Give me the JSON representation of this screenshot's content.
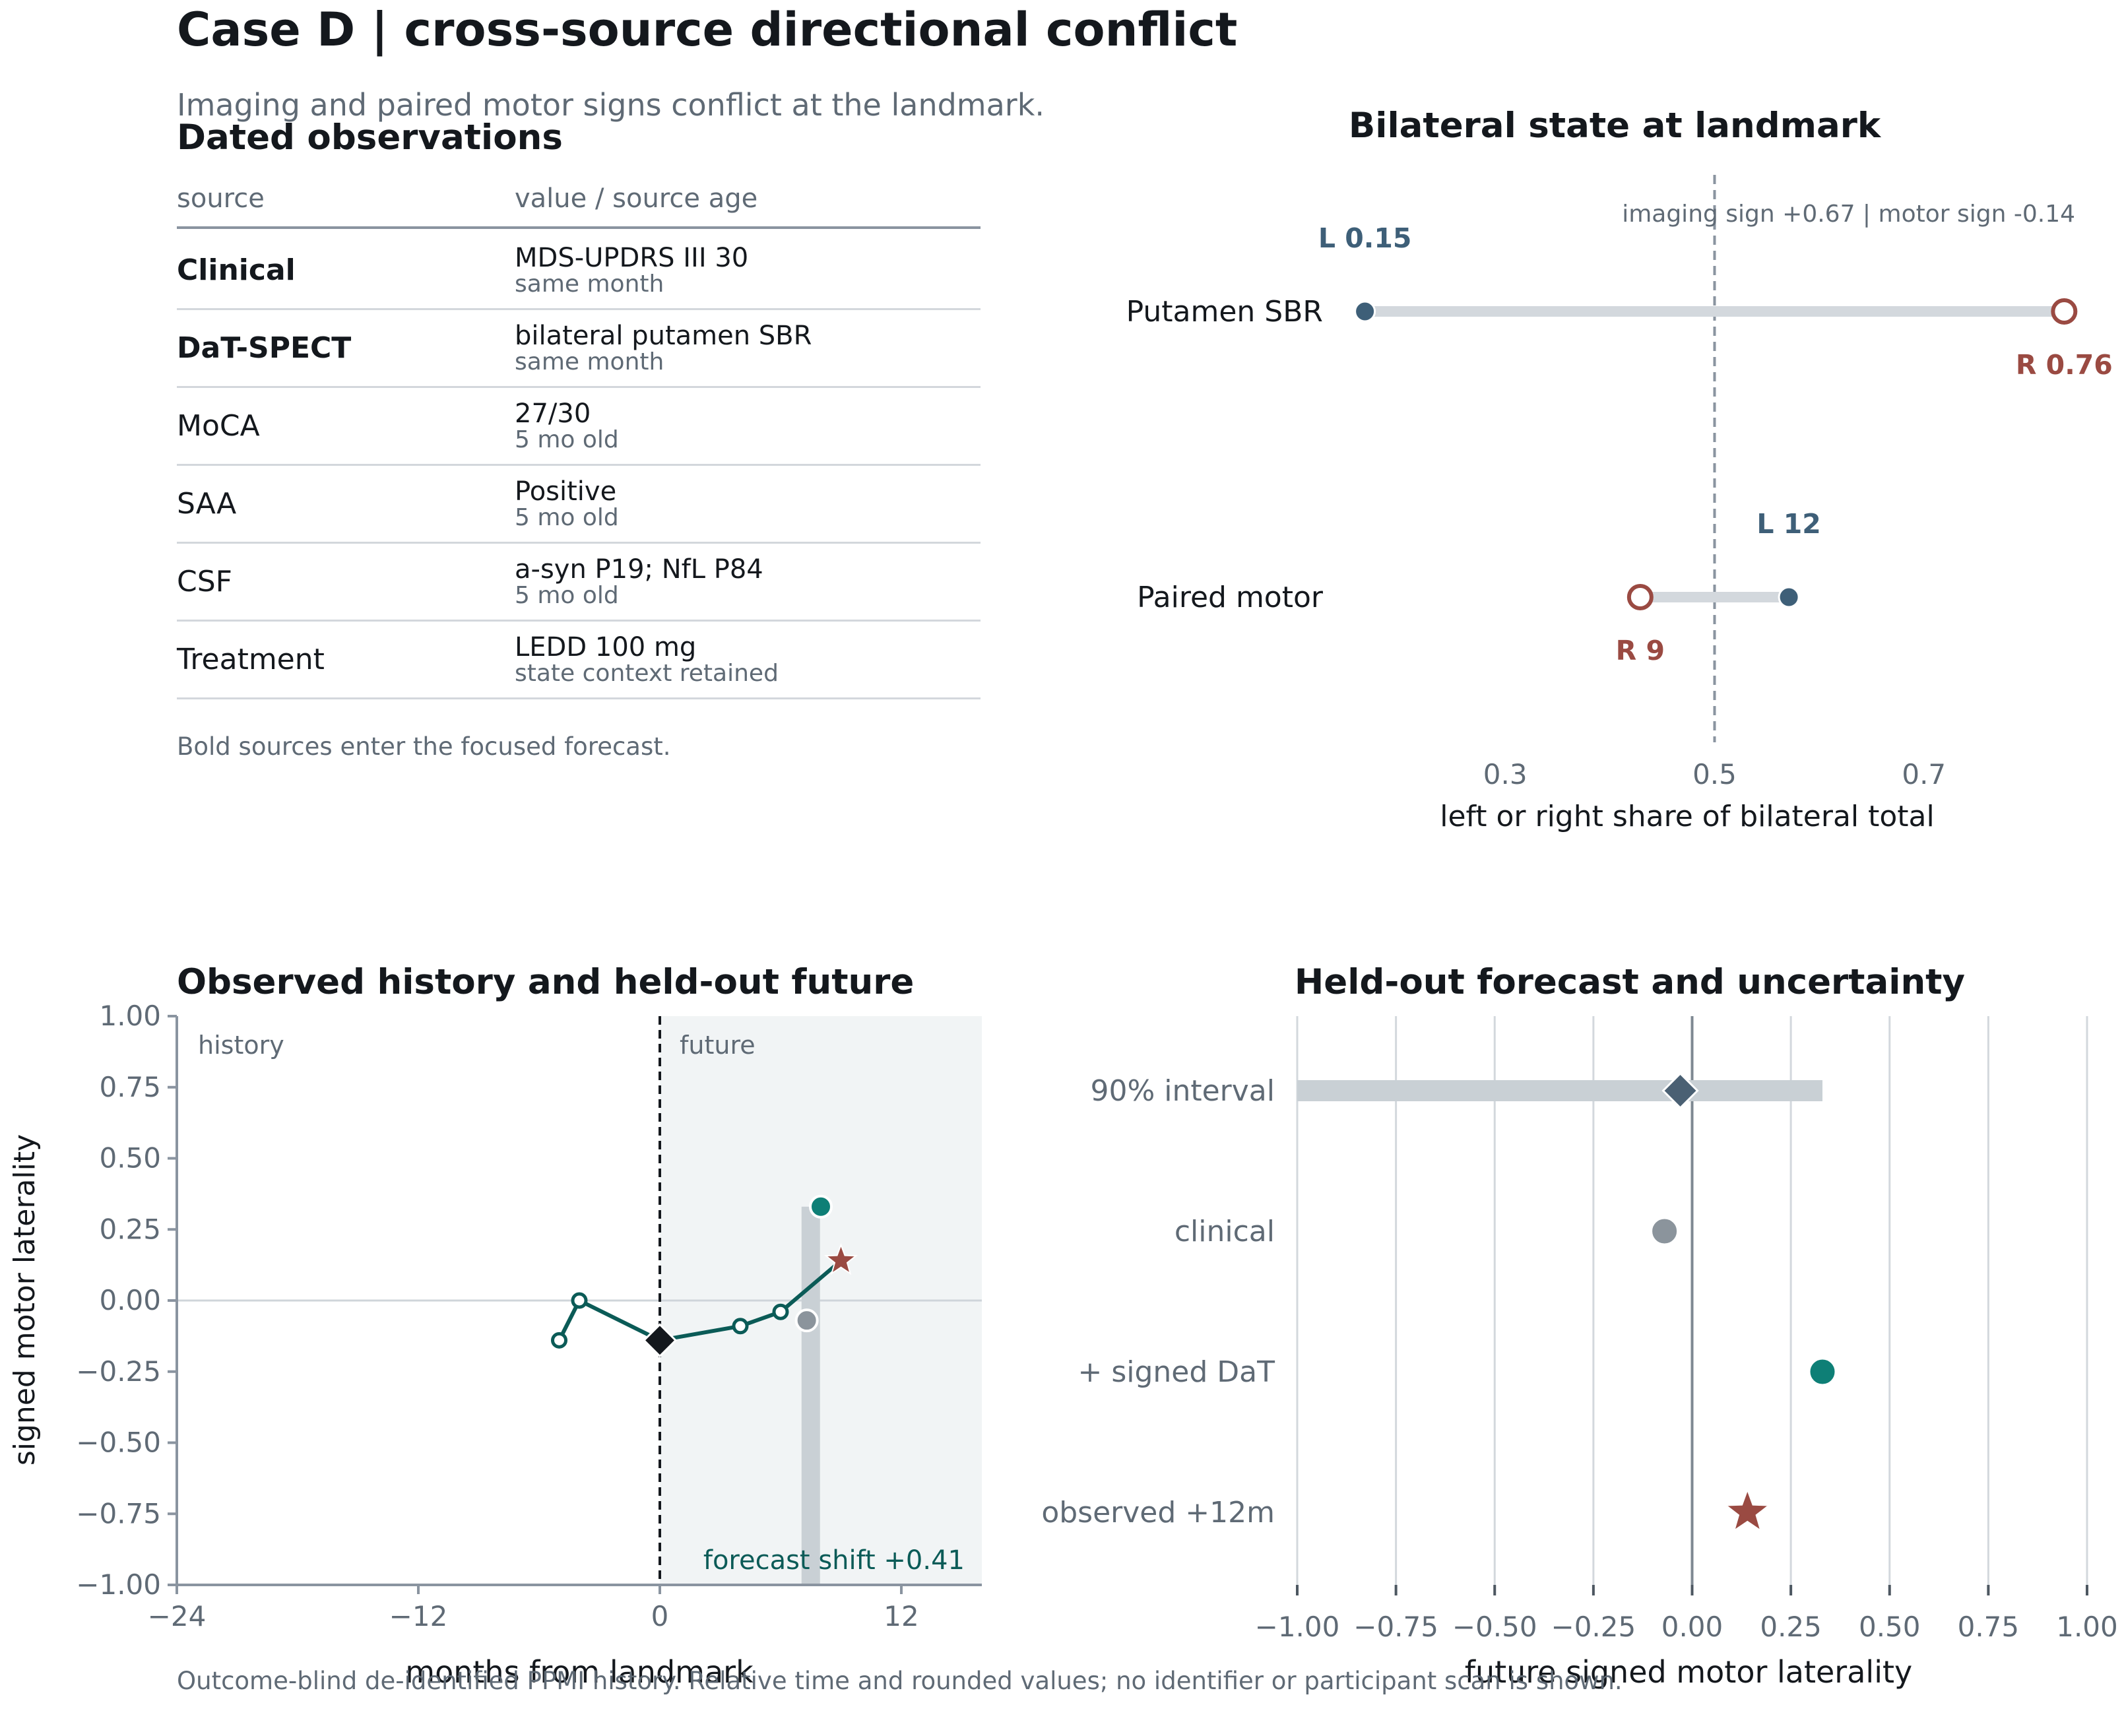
{
  "header": {
    "title": "Case D | cross-source directional conflict",
    "subtitle": "Imaging and paired motor signs conflict at the landmark."
  },
  "observations": {
    "title": "Dated observations",
    "col_source": "source",
    "col_value": "value / source age",
    "rows": [
      {
        "source": "Clinical",
        "bold": true,
        "value": "MDS-UPDRS III 30",
        "age": "same month"
      },
      {
        "source": "DaT-SPECT",
        "bold": true,
        "value": "bilateral putamen SBR",
        "age": "same month"
      },
      {
        "source": "MoCA",
        "bold": false,
        "value": "27/30",
        "age": "5 mo old"
      },
      {
        "source": "SAA",
        "bold": false,
        "value": "Positive",
        "age": "5 mo old"
      },
      {
        "source": "CSF",
        "bold": false,
        "value": "a-syn P19; NfL P84",
        "age": "5 mo old"
      },
      {
        "source": "Treatment",
        "bold": false,
        "value": "LEDD 100 mg",
        "age": "state context retained"
      }
    ],
    "note": "Bold sources enter the focused forecast."
  },
  "footnote": "Outcome-blind de-identified PPMI history. Relative time and rounded values; no identifier or participant scan is shown.",
  "colors": {
    "left": "#3e5f78",
    "right": "#9a4a42",
    "teal": "#0b5b57",
    "teal_bright": "#0e7f76",
    "gray_point": "#8b949c",
    "band": "#c9d0d5",
    "dark": "#14181d",
    "muted": "#5f6a75"
  },
  "chart_data": [
    {
      "id": "bilateral",
      "type": "dumbbell",
      "title": "Bilateral state at landmark",
      "xlabel": "left or right share of bilateral total",
      "xlim": [
        0.078,
        0.83
      ],
      "xticks": [
        0.3,
        0.5,
        0.7
      ],
      "reference_line": 0.5,
      "annotation": "imaging sign +0.67  |  motor sign -0.14",
      "rows": [
        {
          "label": "Putamen SBR",
          "left": 0.166,
          "right": 0.834,
          "left_label": "L 0.15",
          "right_label": "R 0.76"
        },
        {
          "label": "Paired motor",
          "left": 0.571,
          "right": 0.429,
          "left_label": "L 12",
          "right_label": "R 9"
        }
      ]
    },
    {
      "id": "history",
      "type": "line",
      "title": "Observed history and held-out future",
      "xlabel": "months from landmark",
      "ylabel": "signed motor laterality",
      "xlim": [
        -24,
        16
      ],
      "ylim": [
        -1.0,
        1.0
      ],
      "xticks": [
        -24,
        -12,
        0,
        12
      ],
      "yticks": [
        1.0,
        0.75,
        0.5,
        0.25,
        0.0,
        -0.25,
        -0.5,
        -0.75,
        -1.0
      ],
      "ytick_labels": [
        "1.00",
        "0.75",
        "0.50",
        "0.25",
        "0.00",
        "−0.25",
        "−0.50",
        "−0.75",
        "−1.00"
      ],
      "xtick_labels": [
        "−24",
        "−12",
        "0",
        "12"
      ],
      "region_labels": {
        "history": "history",
        "future": "future"
      },
      "series": [
        {
          "points": [
            {
              "x": -5,
              "y": -0.14
            },
            {
              "x": -4,
              "y": 0.0
            },
            {
              "x": 0,
              "y": -0.14
            },
            {
              "x": 4,
              "y": -0.09
            },
            {
              "x": 6,
              "y": -0.04
            },
            {
              "x": 9,
              "y": 0.14
            }
          ]
        }
      ],
      "landmark": {
        "x": 0,
        "y": -0.14
      },
      "forecast_band": {
        "x": 7.5,
        "low": -1.0,
        "high": 0.33
      },
      "clinical_point": {
        "x": 7.3,
        "y": -0.07
      },
      "dat_point": {
        "x": 8,
        "y": 0.33
      },
      "observed_future": {
        "x": 9,
        "y": 0.14
      },
      "shift_label": "forecast shift +0.41"
    },
    {
      "id": "forecast",
      "type": "interval",
      "title": "Held-out forecast and uncertainty",
      "xlabel": "future signed motor laterality",
      "xlim": [
        -1.0,
        1.0
      ],
      "xticks": [
        -1.0,
        -0.75,
        -0.5,
        -0.25,
        0.0,
        0.25,
        0.5,
        0.75,
        1.0
      ],
      "xtick_labels": [
        "−1.00",
        "−0.75",
        "−0.50",
        "−0.25",
        "0.00",
        "0.25",
        "0.50",
        "0.75",
        "1.00"
      ],
      "rows": [
        {
          "label": "90% interval",
          "kind": "interval",
          "low": -1.0,
          "high": 0.33,
          "point": -0.03
        },
        {
          "label": "clinical",
          "kind": "dot",
          "value": -0.07
        },
        {
          "label": "+ signed DaT",
          "kind": "dot",
          "value": 0.33
        },
        {
          "label": "observed +12m",
          "kind": "star",
          "value": 0.14
        }
      ]
    }
  ]
}
